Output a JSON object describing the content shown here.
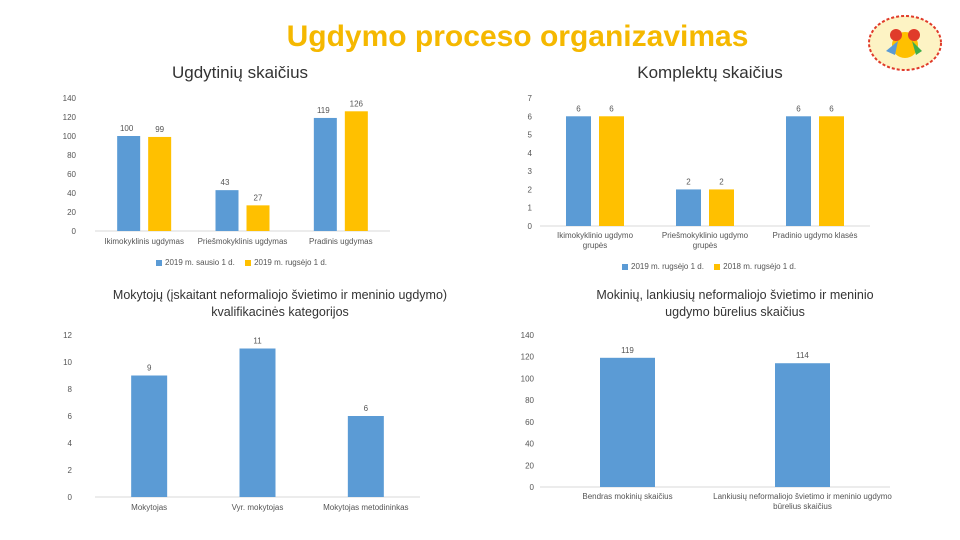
{
  "page": {
    "title": "Ugdymo proceso organizavimas"
  },
  "colors": {
    "blue": "#5b9bd5",
    "yellow": "#ffc000",
    "title": "#f5b800"
  },
  "chart_data": [
    {
      "type": "bar",
      "title": "Ugdytinių skaičius",
      "categories": [
        "Ikimokyklinis ugdymas",
        "Priešmokyklinis ugdymas",
        "Pradinis ugdymas"
      ],
      "series": [
        {
          "name": "2019 m. sausio 1 d.",
          "values": [
            100,
            43,
            119
          ],
          "color": "#5b9bd5"
        },
        {
          "name": "2019 m. rugsėjo 1 d.",
          "values": [
            99,
            27,
            126
          ],
          "color": "#ffc000"
        }
      ],
      "ylim": [
        0,
        140
      ],
      "yticks": [
        0,
        20,
        40,
        60,
        80,
        100,
        120,
        140
      ],
      "legend": "bottom",
      "grid": false
    },
    {
      "type": "bar",
      "title": "Komplektų skaičius",
      "categories": [
        "Ikimokyklinio ugdymo grupės",
        "Priešmokyklinio ugdymo grupės",
        "Pradinio ugdymo klasės"
      ],
      "series": [
        {
          "name": "2019 m. rugsėjo 1 d.",
          "values": [
            6,
            2,
            6
          ],
          "color": "#5b9bd5"
        },
        {
          "name": "2018 m. rugsėjo 1 d.",
          "values": [
            6,
            2,
            6
          ],
          "color": "#ffc000"
        }
      ],
      "ylim": [
        0,
        7
      ],
      "yticks": [
        0,
        1,
        2,
        3,
        4,
        5,
        6,
        7
      ],
      "legend": "bottom",
      "grid": false
    },
    {
      "type": "bar",
      "title": "Mokytojų (įskaitant neformaliojo švietimo ir meninio ugdymo) kvalifikacinės kategorijos",
      "categories": [
        "Mokytojas",
        "Vyr. mokytojas",
        "Mokytojas metodininkas"
      ],
      "series": [
        {
          "values": [
            9,
            11,
            6
          ],
          "color": "#5b9bd5"
        }
      ],
      "ylim": [
        0,
        12
      ],
      "yticks": [
        0,
        2,
        4,
        6,
        8,
        10,
        12
      ],
      "grid": false
    },
    {
      "type": "bar",
      "title": "Mokinių, lankiusių neformaliojo švietimo ir meninio ugdymo būrelius skaičius",
      "categories": [
        "Bendras mokinių skaičius",
        "Lankiusių neformaliojo švietimo ir meninio ugdymo būrelius skaičius"
      ],
      "series": [
        {
          "values": [
            119,
            114
          ],
          "color": "#5b9bd5"
        }
      ],
      "ylim": [
        0,
        140
      ],
      "yticks": [
        0,
        20,
        40,
        60,
        80,
        100,
        120,
        140
      ],
      "grid": false
    }
  ]
}
